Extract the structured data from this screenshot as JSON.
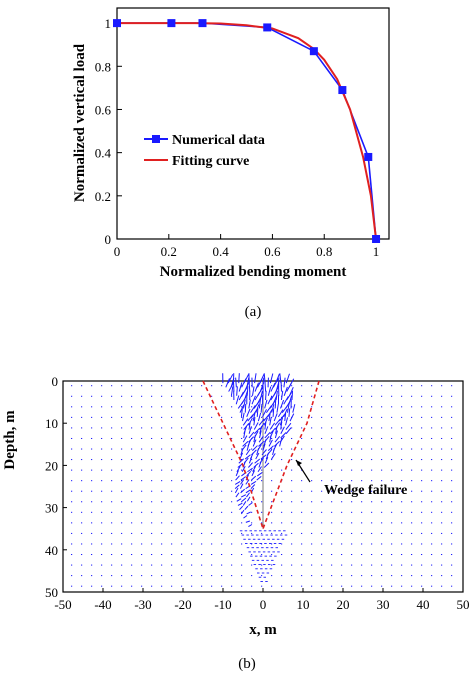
{
  "chart_data": [
    {
      "type": "line",
      "panel_label": "(a)",
      "xlabel": "Normalized bending moment",
      "ylabel": "Normalized vertical load",
      "xlim": [
        0,
        1.05
      ],
      "ylim": [
        0,
        1.07
      ],
      "xticks": [
        "0",
        "0.2",
        "0.4",
        "0.6",
        "0.8",
        "1"
      ],
      "yticks": [
        "0",
        "0.2",
        "0.4",
        "0.6",
        "0.8",
        "1"
      ],
      "legend_position": "center-left",
      "series": [
        {
          "name": "Numerical data",
          "color": "#1a1aff",
          "marker": "square",
          "x": [
            0,
            0.21,
            0.33,
            0.58,
            0.76,
            0.87,
            0.97,
            1.0
          ],
          "y": [
            1.0,
            1.0,
            1.0,
            0.98,
            0.87,
            0.69,
            0.38,
            0.0
          ]
        },
        {
          "name": "Fitting curve",
          "color": "#e02020",
          "x": [
            0,
            0.1,
            0.2,
            0.3,
            0.4,
            0.5,
            0.6,
            0.7,
            0.76,
            0.8,
            0.85,
            0.9,
            0.95,
            0.98,
            1.0
          ],
          "y": [
            1.0,
            1.0,
            1.0,
            1.0,
            0.998,
            0.99,
            0.975,
            0.93,
            0.88,
            0.83,
            0.74,
            0.6,
            0.38,
            0.2,
            0.0
          ]
        }
      ]
    },
    {
      "type": "quiver",
      "panel_label": "(b)",
      "xlabel": "x, m",
      "ylabel": "Depth, m",
      "xlim": [
        -50,
        50
      ],
      "ylim": [
        0,
        50
      ],
      "y_inverted": true,
      "xticks": [
        "-50",
        "-40",
        "-30",
        "-20",
        "-10",
        "0",
        "10",
        "20",
        "30",
        "40",
        "50"
      ],
      "yticks": [
        "0",
        "10",
        "20",
        "30",
        "40",
        "50"
      ],
      "annotation": "Wedge failure",
      "wedge_color": "#e02020",
      "vector_color": "#1a1aff",
      "wedge_left": [
        [
          -15,
          0
        ],
        [
          -10,
          10
        ],
        [
          -5,
          20
        ],
        [
          0,
          35
        ]
      ],
      "wedge_right": [
        [
          14,
          0
        ],
        [
          11,
          10
        ],
        [
          6,
          20
        ],
        [
          0,
          35
        ]
      ]
    }
  ]
}
